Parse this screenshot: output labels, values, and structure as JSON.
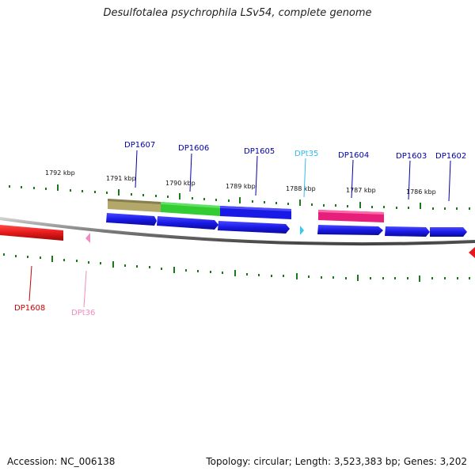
{
  "title": "Desulfotalea psychrophila LSv54, complete genome",
  "footer": {
    "accession": "Accession: NC_006138",
    "summary": "Topology: circular; Length: 3,523,383 bp; Genes: 3,202"
  },
  "scale_labels": [
    "1792 kbp",
    "1791 kbp",
    "1790 kbp",
    "1789 kbp",
    "1788 kbp",
    "1787 kbp",
    "1786 kbp"
  ],
  "genes": {
    "DP1607": "DP1607",
    "DP1606": "DP1606",
    "DP1605": "DP1605",
    "DPt35": "DPt35",
    "DP1604": "DP1604",
    "DP1603": "DP1603",
    "DP1602": "DP1602",
    "DP1608": "DP1608",
    "DPt36": "DPt36"
  },
  "colors": {
    "forward_cds": "#1a1ae6",
    "reverse_cds": "#e61a1a",
    "trna_forward": "#33ccee",
    "trna_reverse": "#f08cc0",
    "cog_olive": "#b3a86a",
    "cog_green": "#33cc33",
    "cog_blue": "#1a1ae6",
    "cog_magenta": "#e6207a",
    "label_forward": "#0000aa",
    "label_trna_forward": "#33bbee",
    "label_reverse": "#cc0000",
    "label_trna_reverse": "#f08cc0",
    "tick": "#1a7a1a",
    "backbone": "#7a7a7a"
  }
}
